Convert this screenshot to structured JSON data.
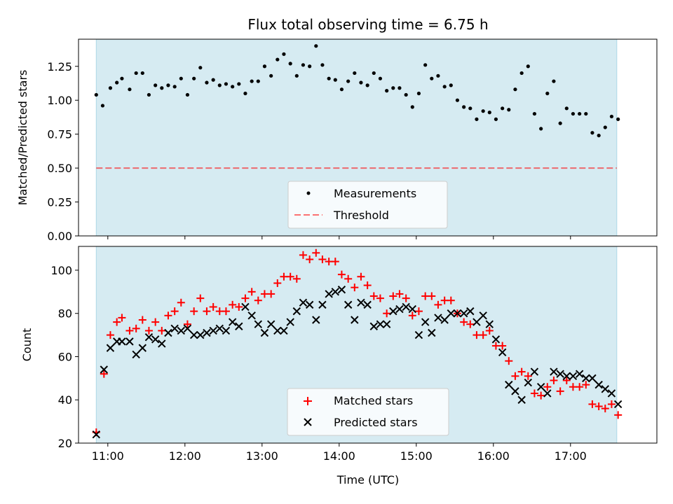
{
  "chart_data": [
    {
      "type": "scatter",
      "panel": "top",
      "title": "Flux total observing time = 6.75 h",
      "xlabel": "",
      "ylabel": "Matched/Predicted stars",
      "xlim": [
        10.62,
        18.12
      ],
      "ylim": [
        0.0,
        1.45
      ],
      "yticks": [
        0.0,
        0.25,
        0.5,
        0.75,
        1.0,
        1.25
      ],
      "ytick_labels": [
        "0.00",
        "0.25",
        "0.50",
        "0.75",
        "1.00",
        "1.25"
      ],
      "observing_window": [
        10.85,
        17.6
      ],
      "threshold": {
        "name": "Threshold",
        "value": 0.5
      },
      "legend": {
        "position": "lower-center",
        "entries": [
          "Measurements",
          "Threshold"
        ]
      },
      "series": [
        {
          "name": "Measurements",
          "x": [
            10.85,
            10.933,
            11.033,
            11.117,
            11.183,
            11.283,
            11.367,
            11.45,
            11.533,
            11.617,
            11.7,
            11.783,
            11.867,
            11.95,
            12.033,
            12.117,
            12.2,
            12.283,
            12.367,
            12.45,
            12.533,
            12.617,
            12.7,
            12.783,
            12.867,
            12.95,
            13.033,
            13.117,
            13.2,
            13.283,
            13.367,
            13.45,
            13.533,
            13.617,
            13.7,
            13.783,
            13.867,
            13.95,
            14.033,
            14.117,
            14.2,
            14.283,
            14.367,
            14.45,
            14.533,
            14.617,
            14.7,
            14.783,
            14.867,
            14.95,
            15.033,
            15.117,
            15.2,
            15.283,
            15.367,
            15.45,
            15.533,
            15.617,
            15.7,
            15.783,
            15.867,
            15.95,
            16.033,
            16.117,
            16.2,
            16.283,
            16.367,
            16.45,
            16.533,
            16.617,
            16.7,
            16.783,
            16.867,
            16.95,
            17.033,
            17.117,
            17.2,
            17.283,
            17.367,
            17.45,
            17.533,
            17.617
          ],
          "y": [
            1.04,
            0.96,
            1.09,
            1.13,
            1.16,
            1.08,
            1.2,
            1.2,
            1.04,
            1.11,
            1.09,
            1.11,
            1.1,
            1.16,
            1.04,
            1.16,
            1.24,
            1.13,
            1.15,
            1.11,
            1.12,
            1.1,
            1.12,
            1.05,
            1.14,
            1.14,
            1.25,
            1.18,
            1.3,
            1.34,
            1.27,
            1.18,
            1.26,
            1.25,
            1.4,
            1.26,
            1.16,
            1.15,
            1.08,
            1.14,
            1.2,
            1.13,
            1.11,
            1.2,
            1.16,
            1.07,
            1.09,
            1.09,
            1.04,
            0.95,
            1.05,
            1.26,
            1.16,
            1.18,
            1.1,
            1.11,
            1.0,
            0.95,
            0.94,
            0.86,
            0.92,
            0.91,
            0.86,
            0.94,
            0.93,
            1.08,
            1.2,
            1.25,
            0.9,
            0.79,
            1.05,
            1.14,
            0.83,
            0.94,
            0.9,
            0.9,
            0.9,
            0.76,
            0.74,
            0.8,
            0.88,
            0.86
          ]
        }
      ]
    },
    {
      "type": "scatter",
      "panel": "bottom",
      "title": "",
      "xlabel": "Time (UTC)",
      "ylabel": "Count",
      "xlim": [
        10.62,
        18.12
      ],
      "ylim": [
        20,
        111
      ],
      "xticks": [
        11,
        12,
        13,
        14,
        15,
        16,
        17
      ],
      "xtick_labels": [
        "11:00",
        "12:00",
        "13:00",
        "14:00",
        "15:00",
        "16:00",
        "17:00"
      ],
      "yticks": [
        20,
        40,
        60,
        80,
        100
      ],
      "ytick_labels": [
        "20",
        "40",
        "60",
        "80",
        "100"
      ],
      "observing_window": [
        10.85,
        17.6
      ],
      "legend": {
        "position": "lower-center",
        "entries": [
          "Matched stars",
          "Predicted stars"
        ]
      },
      "series": [
        {
          "name": "Matched stars",
          "marker": "plus",
          "color": "#ff0000",
          "x": [
            10.85,
            10.95,
            11.033,
            11.117,
            11.183,
            11.283,
            11.367,
            11.45,
            11.533,
            11.617,
            11.7,
            11.783,
            11.867,
            11.95,
            12.033,
            12.117,
            12.2,
            12.283,
            12.367,
            12.45,
            12.533,
            12.617,
            12.7,
            12.783,
            12.867,
            12.95,
            13.033,
            13.117,
            13.2,
            13.283,
            13.367,
            13.45,
            13.533,
            13.617,
            13.7,
            13.783,
            13.867,
            13.95,
            14.033,
            14.117,
            14.2,
            14.283,
            14.367,
            14.45,
            14.533,
            14.617,
            14.7,
            14.783,
            14.867,
            14.95,
            15.033,
            15.117,
            15.2,
            15.283,
            15.367,
            15.45,
            15.533,
            15.617,
            15.7,
            15.783,
            15.867,
            15.95,
            16.033,
            16.117,
            16.2,
            16.283,
            16.367,
            16.45,
            16.533,
            16.617,
            16.7,
            16.783,
            16.867,
            16.95,
            17.033,
            17.117,
            17.2,
            17.283,
            17.367,
            17.45,
            17.533,
            17.617
          ],
          "y": [
            25,
            52,
            70,
            76,
            78,
            72,
            73,
            77,
            72,
            76,
            72,
            79,
            81,
            85,
            75,
            81,
            87,
            81,
            83,
            81,
            81,
            84,
            83,
            87,
            90,
            86,
            89,
            89,
            94,
            97,
            97,
            96,
            107,
            105,
            108,
            105,
            104,
            104,
            98,
            96,
            92,
            97,
            93,
            88,
            87,
            80,
            88,
            89,
            87,
            79,
            81,
            88,
            88,
            84,
            86,
            86,
            80,
            76,
            75,
            70,
            70,
            72,
            65,
            65,
            58,
            51,
            53,
            51,
            43,
            42,
            46,
            49,
            44,
            49,
            46,
            46,
            47,
            38,
            37,
            36,
            38,
            33
          ]
        },
        {
          "name": "Predicted stars",
          "marker": "x",
          "color": "#000000",
          "x": [
            10.85,
            10.95,
            11.033,
            11.117,
            11.183,
            11.283,
            11.367,
            11.45,
            11.533,
            11.617,
            11.7,
            11.783,
            11.867,
            11.95,
            12.033,
            12.117,
            12.2,
            12.283,
            12.367,
            12.45,
            12.533,
            12.617,
            12.7,
            12.783,
            12.867,
            12.95,
            13.033,
            13.117,
            13.2,
            13.283,
            13.367,
            13.45,
            13.533,
            13.617,
            13.7,
            13.783,
            13.867,
            13.95,
            14.033,
            14.117,
            14.2,
            14.283,
            14.367,
            14.45,
            14.533,
            14.617,
            14.7,
            14.783,
            14.867,
            14.95,
            15.033,
            15.117,
            15.2,
            15.283,
            15.367,
            15.45,
            15.533,
            15.617,
            15.7,
            15.783,
            15.867,
            15.95,
            16.033,
            16.117,
            16.2,
            16.283,
            16.367,
            16.45,
            16.533,
            16.617,
            16.7,
            16.783,
            16.867,
            16.95,
            17.033,
            17.117,
            17.2,
            17.283,
            17.367,
            17.45,
            17.533,
            17.617
          ],
          "y": [
            24,
            54,
            64,
            67,
            67,
            67,
            61,
            64,
            69,
            68,
            66,
            71,
            73,
            72,
            73,
            70,
            70,
            71,
            72,
            73,
            72,
            76,
            74,
            83,
            79,
            75,
            71,
            75,
            72,
            72,
            76,
            81,
            85,
            84,
            77,
            84,
            89,
            90,
            91,
            84,
            77,
            85,
            84,
            74,
            75,
            75,
            81,
            82,
            83,
            82,
            70,
            76,
            71,
            78,
            77,
            80,
            80,
            80,
            81,
            76,
            79,
            75,
            68,
            62,
            47,
            44,
            40,
            48,
            53,
            46,
            43,
            53,
            52,
            51,
            51,
            52,
            50,
            50,
            47,
            45,
            43,
            38
          ]
        }
      ]
    }
  ]
}
